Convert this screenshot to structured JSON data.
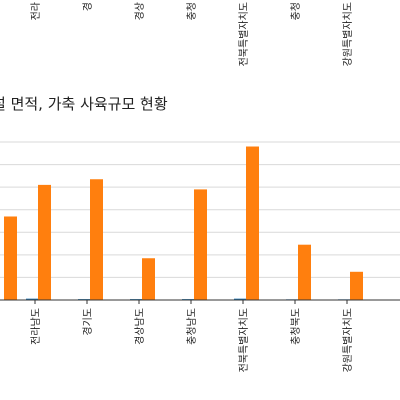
{
  "chart_data": {
    "type": "bar",
    "title": "설 면적, 가축 사육규모 현황",
    "top_labels": [
      "전라",
      "경",
      "경상",
      "충청",
      "전북특별자치도",
      "충청",
      "강원특별자치도"
    ],
    "categories": [
      "전라남도",
      "경기도",
      "경상남도",
      "충청남도",
      "전북특별자치도",
      "충청북도",
      "강원특별자치도"
    ],
    "left_partial_value": 37,
    "series": [
      {
        "values": [
          0.6,
          0.4,
          0.4,
          0.4,
          0.6,
          0.3,
          0.3
        ],
        "color": "#1f77b4"
      },
      {
        "values": [
          51,
          53.5,
          18.5,
          49,
          68,
          24.5,
          12.5
        ],
        "color": "#ff7f0e"
      }
    ],
    "ylim": [
      0,
      70
    ],
    "grid": true
  }
}
